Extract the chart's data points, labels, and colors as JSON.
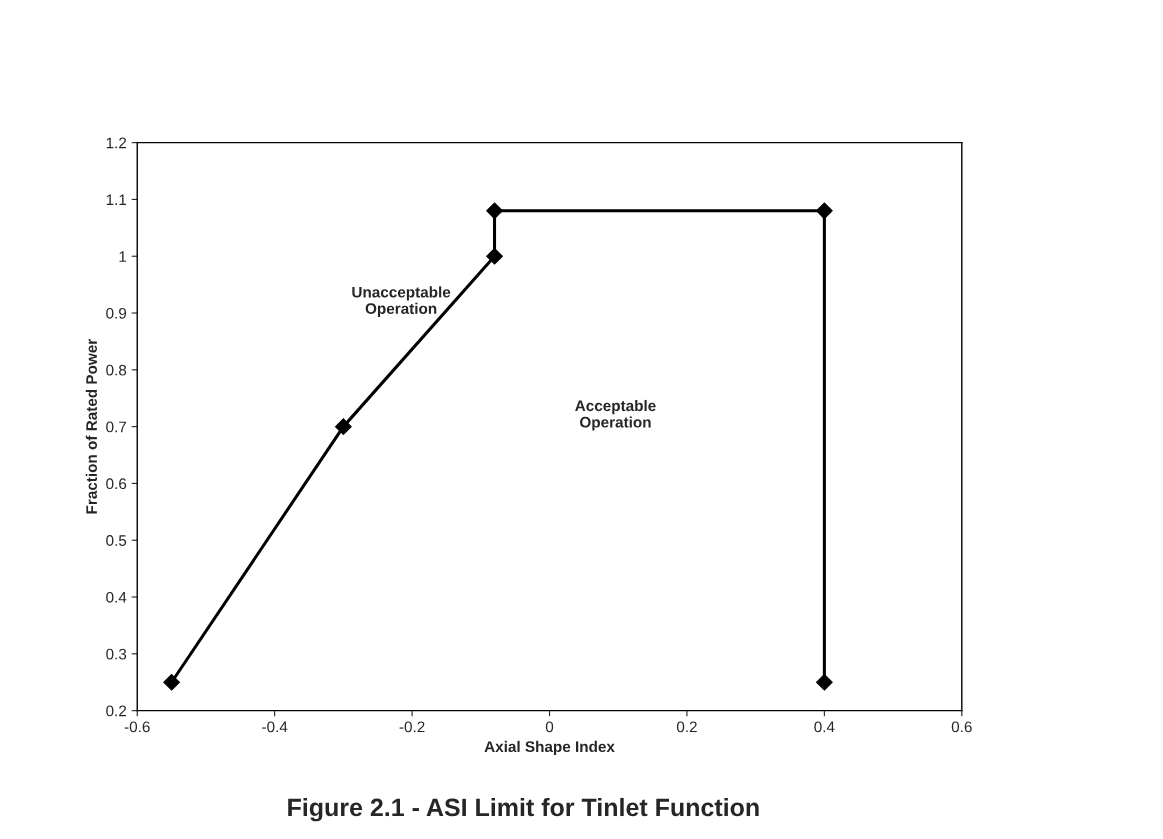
{
  "chart_data": {
    "type": "line",
    "title": "Figure 2.1 - ASI Limit for Tinlet Function",
    "xlabel": "Axial Shape Index",
    "ylabel": "Fraction of Rated Power",
    "x": [
      -0.55,
      -0.3,
      -0.08,
      -0.08,
      0.4,
      0.4
    ],
    "series": [
      {
        "color": "#000000",
        "values": [
          0.25,
          0.7,
          1.0,
          1.08,
          1.08,
          0.25
        ]
      }
    ],
    "xlim": [
      -0.6,
      0.6
    ],
    "xticks": [
      -0.6,
      -0.4,
      -0.2,
      0,
      0.2,
      0.4,
      0.6
    ],
    "ylim": [
      0.2,
      1.2
    ],
    "yticks": [
      0.2,
      0.3,
      0.4,
      0.5,
      0.6,
      0.7,
      0.8,
      0.9,
      1,
      1.1,
      1.2
    ],
    "marker": "diamond",
    "line_style": "solid",
    "grid": false,
    "legend": false,
    "annotations": [
      "Unacceptable\nOperation",
      "Acceptable\nOperation"
    ]
  }
}
